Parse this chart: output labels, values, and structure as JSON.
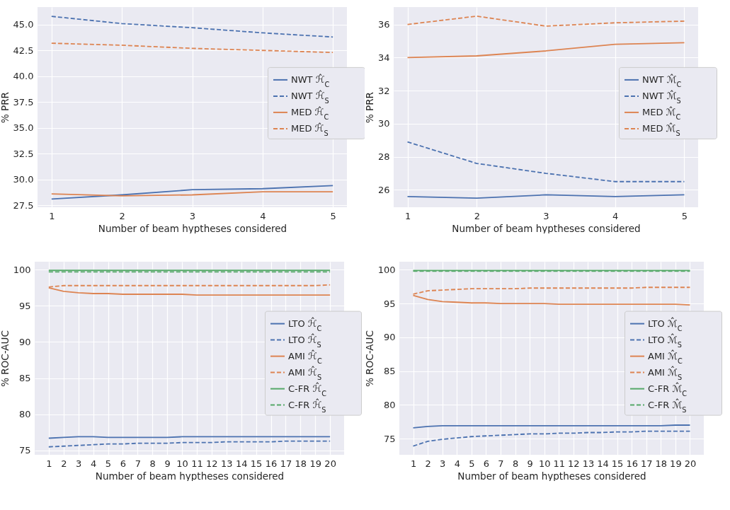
{
  "chart_data": [
    {
      "type": "line",
      "xlabel": "Number of beam hyptheses considered",
      "ylabel": "% PRR",
      "x": [
        1,
        2,
        3,
        4,
        5
      ],
      "xlim": [
        0.8,
        5.2
      ],
      "xticks": [
        1,
        2,
        3,
        4,
        5
      ],
      "ylim": [
        27.3,
        46.7
      ],
      "yticks": [
        {
          "value": 27.5,
          "label": "27.5"
        },
        {
          "value": 30,
          "label": "30.0"
        },
        {
          "value": 32.5,
          "label": "32.5"
        },
        {
          "value": 35,
          "label": "35.0"
        },
        {
          "value": 37.5,
          "label": "37.5"
        },
        {
          "value": 40,
          "label": "40.0"
        },
        {
          "value": 42.5,
          "label": "42.5"
        },
        {
          "value": 45,
          "label": "45.0"
        }
      ],
      "grid": true,
      "legend": "right",
      "series": [
        {
          "name": "NWT ℋ̂$_{C}$",
          "color": "#4c72b0",
          "line_style": "solid",
          "values": [
            28.1,
            28.5,
            29.0,
            29.1,
            29.4
          ]
        },
        {
          "name": "NWT ℋ̂$_{S}$",
          "color": "#4c72b0",
          "line_style": "dashed",
          "values": [
            45.8,
            45.1,
            44.7,
            44.2,
            43.8
          ]
        },
        {
          "name": "MED ℋ̂$_{C}$",
          "color": "#dd8452",
          "line_style": "solid",
          "values": [
            28.6,
            28.4,
            28.5,
            28.8,
            28.8
          ]
        },
        {
          "name": "MED ℋ̂$_{S}$",
          "color": "#dd8452",
          "line_style": "dashed",
          "values": [
            43.2,
            43.0,
            42.7,
            42.5,
            42.3
          ]
        }
      ]
    },
    {
      "type": "line",
      "xlabel": "Number of beam hyptheses considered",
      "ylabel": "% PRR",
      "x": [
        1,
        2,
        3,
        4,
        5
      ],
      "xlim": [
        0.8,
        5.2
      ],
      "xticks": [
        1,
        2,
        3,
        4,
        5
      ],
      "ylim": [
        24.95,
        37.05
      ],
      "yticks": [
        26,
        28,
        30,
        32,
        34,
        36
      ],
      "grid": true,
      "legend": "right",
      "series": [
        {
          "name": "NWT ℳ̂$_{C}$",
          "color": "#4c72b0",
          "line_style": "solid",
          "values": [
            25.6,
            25.5,
            25.7,
            25.6,
            25.7
          ]
        },
        {
          "name": "NWT ℳ̂$_{S}$",
          "color": "#4c72b0",
          "line_style": "dashed",
          "values": [
            28.9,
            27.6,
            27.0,
            26.5,
            26.5
          ]
        },
        {
          "name": "MED ℳ̂$_{C}$",
          "color": "#dd8452",
          "line_style": "solid",
          "values": [
            34.0,
            34.1,
            34.4,
            34.8,
            34.9
          ]
        },
        {
          "name": "MED ℳ̂$_{S}$",
          "color": "#dd8452",
          "line_style": "dashed",
          "values": [
            36.0,
            36.5,
            35.9,
            36.1,
            36.2
          ]
        }
      ]
    },
    {
      "type": "line",
      "xlabel": "Number of beam hyptheses considered",
      "ylabel": "% ROC-AUC",
      "x": [
        1,
        2,
        3,
        4,
        5,
        6,
        7,
        8,
        9,
        10,
        11,
        12,
        13,
        14,
        15,
        16,
        17,
        18,
        19,
        20
      ],
      "xlim": [
        0.05,
        20.95
      ],
      "xticks": [
        1,
        2,
        3,
        4,
        5,
        6,
        7,
        8,
        9,
        10,
        11,
        12,
        13,
        14,
        15,
        16,
        17,
        18,
        19,
        20
      ],
      "ylim": [
        74.4,
        101.1
      ],
      "yticks": [
        75,
        80,
        85,
        90,
        95,
        100
      ],
      "grid": true,
      "legend": "right",
      "series": [
        {
          "name": "LTO ℋ̂$_{C}$",
          "color": "#4c72b0",
          "line_style": "solid",
          "values": [
            76.7,
            76.8,
            76.9,
            76.9,
            76.8,
            76.8,
            76.8,
            76.8,
            76.8,
            76.9,
            76.9,
            76.9,
            76.9,
            76.9,
            76.9,
            76.9,
            76.9,
            76.9,
            76.9,
            76.9
          ]
        },
        {
          "name": "LTO ℋ̂$_{S}$",
          "color": "#4c72b0",
          "line_style": "dashed",
          "values": [
            75.5,
            75.6,
            75.7,
            75.8,
            75.9,
            75.9,
            76.0,
            76.0,
            76.0,
            76.1,
            76.1,
            76.1,
            76.2,
            76.2,
            76.2,
            76.2,
            76.3,
            76.3,
            76.3,
            76.3
          ]
        },
        {
          "name": "AMI ℋ̂$_{C}$",
          "color": "#dd8452",
          "line_style": "solid",
          "values": [
            97.5,
            97.0,
            96.8,
            96.7,
            96.7,
            96.6,
            96.6,
            96.6,
            96.6,
            96.6,
            96.5,
            96.5,
            96.5,
            96.5,
            96.5,
            96.5,
            96.5,
            96.5,
            96.5,
            96.5
          ]
        },
        {
          "name": "AMI ℋ̂$_{S}$",
          "color": "#dd8452",
          "line_style": "dashed",
          "values": [
            97.6,
            97.8,
            97.8,
            97.8,
            97.8,
            97.8,
            97.8,
            97.8,
            97.8,
            97.8,
            97.8,
            97.8,
            97.8,
            97.8,
            97.8,
            97.8,
            97.8,
            97.8,
            97.8,
            97.9
          ]
        },
        {
          "name": "C-FR ℋ̂$_{C}$",
          "color": "#55a868",
          "line_style": "solid",
          "values": [
            99.9,
            99.9,
            99.9,
            99.9,
            99.9,
            99.9,
            99.9,
            99.9,
            99.9,
            99.9,
            99.9,
            99.9,
            99.9,
            99.9,
            99.9,
            99.9,
            99.9,
            99.9,
            99.9,
            99.9
          ]
        },
        {
          "name": "C-FR ℋ̂$_{S}$",
          "color": "#55a868",
          "line_style": "dashed",
          "values": [
            99.7,
            99.7,
            99.7,
            99.7,
            99.7,
            99.7,
            99.7,
            99.7,
            99.7,
            99.7,
            99.7,
            99.7,
            99.7,
            99.7,
            99.7,
            99.7,
            99.7,
            99.7,
            99.7,
            99.7
          ]
        }
      ]
    },
    {
      "type": "line",
      "xlabel": "Number of beam hyptheses considered",
      "ylabel": "% ROC-AUC",
      "x": [
        1,
        2,
        3,
        4,
        5,
        6,
        7,
        8,
        9,
        10,
        11,
        12,
        13,
        14,
        15,
        16,
        17,
        18,
        19,
        20
      ],
      "xlim": [
        0.05,
        20.95
      ],
      "xticks": [
        1,
        2,
        3,
        4,
        5,
        6,
        7,
        8,
        9,
        10,
        11,
        12,
        13,
        14,
        15,
        16,
        17,
        18,
        19,
        20
      ],
      "ylim": [
        72.6,
        101.2
      ],
      "yticks": [
        75,
        80,
        85,
        90,
        95,
        100
      ],
      "grid": true,
      "legend": "right",
      "series": [
        {
          "name": "LTO ℳ̂$_{C}$",
          "color": "#4c72b0",
          "line_style": "solid",
          "values": [
            76.6,
            76.8,
            76.9,
            76.9,
            76.9,
            76.9,
            76.9,
            76.9,
            76.9,
            76.9,
            76.9,
            76.9,
            76.9,
            76.9,
            76.9,
            76.9,
            76.9,
            76.9,
            77.0,
            77.0
          ]
        },
        {
          "name": "LTO ℳ̂$_{S}$",
          "color": "#4c72b0",
          "line_style": "dashed",
          "values": [
            73.9,
            74.6,
            74.9,
            75.1,
            75.3,
            75.4,
            75.5,
            75.6,
            75.7,
            75.7,
            75.8,
            75.8,
            75.9,
            75.9,
            76.0,
            76.0,
            76.1,
            76.1,
            76.1,
            76.1
          ]
        },
        {
          "name": "AMI ℳ̂$_{C}$",
          "color": "#dd8452",
          "line_style": "solid",
          "values": [
            96.2,
            95.6,
            95.3,
            95.2,
            95.1,
            95.1,
            95.0,
            95.0,
            95.0,
            95.0,
            94.9,
            94.9,
            94.9,
            94.9,
            94.9,
            94.9,
            94.9,
            94.9,
            94.9,
            94.8
          ]
        },
        {
          "name": "AMI ℳ̂$_{S}$",
          "color": "#dd8452",
          "line_style": "dashed",
          "values": [
            96.4,
            96.9,
            97.0,
            97.1,
            97.2,
            97.2,
            97.2,
            97.2,
            97.3,
            97.3,
            97.3,
            97.3,
            97.3,
            97.3,
            97.3,
            97.3,
            97.4,
            97.4,
            97.4,
            97.4
          ]
        },
        {
          "name": "C-FR ℳ̂$_{C}$",
          "color": "#55a868",
          "line_style": "solid",
          "values": [
            99.9,
            99.9,
            99.9,
            99.9,
            99.9,
            99.9,
            99.9,
            99.9,
            99.9,
            99.9,
            99.9,
            99.9,
            99.9,
            99.9,
            99.9,
            99.9,
            99.9,
            99.9,
            99.9,
            99.9
          ]
        },
        {
          "name": "C-FR ℳ̂$_{S}$",
          "color": "#55a868",
          "line_style": "dashed",
          "values": [
            99.8,
            99.8,
            99.8,
            99.8,
            99.8,
            99.8,
            99.8,
            99.8,
            99.8,
            99.8,
            99.8,
            99.8,
            99.8,
            99.8,
            99.8,
            99.8,
            99.8,
            99.8,
            99.8,
            99.8
          ]
        }
      ]
    }
  ]
}
